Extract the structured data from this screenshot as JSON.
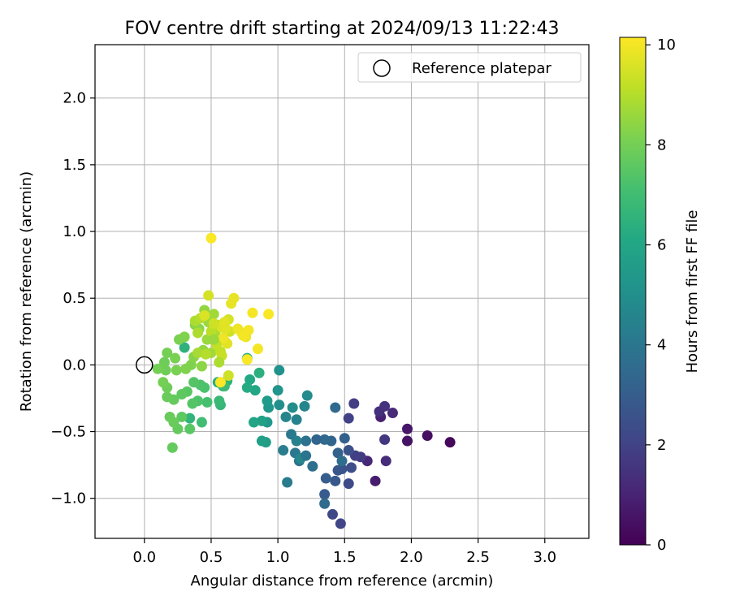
{
  "chart_data": {
    "type": "scatter",
    "title": "FOV centre drift starting at 2024/09/13 11:22:43",
    "xlabel": "Angular distance from reference (arcmin)",
    "ylabel": "Rotation from reference (arcmin)",
    "xlim": [
      -0.37,
      3.33
    ],
    "ylim": [
      -1.3,
      2.4
    ],
    "xticks": [
      0.0,
      0.5,
      1.0,
      1.5,
      2.0,
      2.5,
      3.0
    ],
    "xtick_labels": [
      "0.0",
      "0.5",
      "1.0",
      "1.5",
      "2.0",
      "2.5",
      "3.0"
    ],
    "yticks": [
      -1.0,
      -0.5,
      0.0,
      0.5,
      1.0,
      1.5,
      2.0
    ],
    "ytick_labels": [
      "−1.0",
      "−0.5",
      "0.0",
      "0.5",
      "1.0",
      "1.5",
      "2.0"
    ],
    "grid": true,
    "legend": {
      "placement": "top-right",
      "entries": [
        "Reference platepar"
      ]
    },
    "reference_point": {
      "x": 0.0,
      "y": 0.0
    },
    "colorbar": {
      "label": "Hours from first FF file",
      "colormap": "viridis",
      "range": [
        0,
        10.15
      ],
      "ticks": [
        0,
        2,
        4,
        6,
        8,
        10
      ],
      "tick_labels": [
        "0",
        "2",
        "4",
        "6",
        "8",
        "10"
      ]
    },
    "points": [
      [
        2.29,
        -0.58,
        0.2
      ],
      [
        2.12,
        -0.53,
        0.4
      ],
      [
        1.97,
        -0.57,
        0.5
      ],
      [
        1.97,
        -0.48,
        0.6
      ],
      [
        1.73,
        -0.87,
        0.8
      ],
      [
        1.77,
        -0.39,
        0.9
      ],
      [
        1.67,
        -0.72,
        1.1
      ],
      [
        1.86,
        -0.36,
        1.2
      ],
      [
        1.81,
        -0.72,
        1.3
      ],
      [
        1.76,
        -0.35,
        1.4
      ],
      [
        1.8,
        -0.31,
        1.5
      ],
      [
        1.8,
        -0.56,
        1.6
      ],
      [
        1.62,
        -0.69,
        1.7
      ],
      [
        1.57,
        -0.29,
        1.8
      ],
      [
        1.58,
        -0.68,
        1.9
      ],
      [
        1.53,
        -0.4,
        2.0
      ],
      [
        1.47,
        -1.19,
        2.1
      ],
      [
        1.41,
        -1.12,
        2.2
      ],
      [
        1.53,
        -0.89,
        2.3
      ],
      [
        1.55,
        -0.77,
        2.4
      ],
      [
        1.53,
        -0.64,
        2.5
      ],
      [
        1.48,
        -0.78,
        2.6
      ],
      [
        1.45,
        -0.79,
        2.7
      ],
      [
        1.43,
        -0.87,
        2.8
      ],
      [
        1.35,
        -0.97,
        2.9
      ],
      [
        1.36,
        -0.85,
        3.0
      ],
      [
        1.5,
        -0.55,
        3.1
      ],
      [
        1.45,
        -0.66,
        3.2
      ],
      [
        1.4,
        -0.57,
        3.3
      ],
      [
        1.35,
        -0.56,
        3.4
      ],
      [
        1.35,
        -1.04,
        3.5
      ],
      [
        1.43,
        -0.32,
        3.5
      ],
      [
        1.48,
        -0.72,
        3.6
      ],
      [
        1.26,
        -0.76,
        3.7
      ],
      [
        1.21,
        -0.57,
        3.8
      ],
      [
        1.16,
        -0.72,
        3.9
      ],
      [
        1.13,
        -0.66,
        4.0
      ],
      [
        1.1,
        -0.52,
        4.1
      ],
      [
        1.07,
        -0.88,
        4.2
      ],
      [
        1.04,
        -0.64,
        4.3
      ],
      [
        1.14,
        -0.57,
        4.4
      ],
      [
        1.14,
        -0.41,
        4.5
      ],
      [
        1.2,
        -0.31,
        4.6
      ],
      [
        1.17,
        -0.7,
        4.7
      ],
      [
        1.22,
        -0.23,
        4.8
      ],
      [
        1.21,
        -0.68,
        3.9
      ],
      [
        1.29,
        -0.56,
        3.3
      ],
      [
        1.06,
        -0.39,
        4.6
      ],
      [
        1.11,
        -0.32,
        4.9
      ],
      [
        1.01,
        -0.3,
        5.0
      ],
      [
        1.01,
        -0.04,
        5.1
      ],
      [
        1.0,
        -0.19,
        5.2
      ],
      [
        0.93,
        -0.32,
        5.3
      ],
      [
        0.92,
        -0.43,
        5.4
      ],
      [
        0.92,
        -0.27,
        5.5
      ],
      [
        0.91,
        -0.58,
        5.6
      ],
      [
        0.88,
        -0.57,
        5.7
      ],
      [
        0.88,
        -0.42,
        5.8
      ],
      [
        0.82,
        -0.43,
        5.9
      ],
      [
        0.83,
        -0.19,
        6.0
      ],
      [
        0.79,
        -0.11,
        6.1
      ],
      [
        0.77,
        -0.17,
        6.2
      ],
      [
        0.77,
        0.05,
        6.3
      ],
      [
        0.86,
        -0.06,
        6.4
      ],
      [
        0.62,
        -0.12,
        6.5
      ],
      [
        0.59,
        -0.16,
        6.6
      ],
      [
        0.57,
        -0.3,
        6.7
      ],
      [
        0.56,
        -0.27,
        6.8
      ],
      [
        0.6,
        -0.16,
        6.9
      ],
      [
        0.55,
        -0.13,
        6.4
      ],
      [
        0.3,
        0.13,
        6.5
      ],
      [
        0.34,
        -0.4,
        6.6
      ],
      [
        0.43,
        -0.43,
        7.0
      ],
      [
        0.47,
        -0.28,
        7.1
      ],
      [
        0.45,
        -0.17,
        7.2
      ],
      [
        0.42,
        -0.15,
        7.3
      ],
      [
        0.4,
        -0.27,
        7.3
      ],
      [
        0.37,
        -0.13,
        7.4
      ],
      [
        0.36,
        -0.29,
        7.4
      ],
      [
        0.34,
        -0.48,
        7.5
      ],
      [
        0.32,
        -0.2,
        7.5
      ],
      [
        0.28,
        -0.39,
        7.6
      ],
      [
        0.28,
        -0.22,
        7.6
      ],
      [
        0.25,
        -0.48,
        7.7
      ],
      [
        0.21,
        -0.62,
        7.7
      ],
      [
        0.22,
        -0.26,
        7.7
      ],
      [
        0.22,
        -0.43,
        7.8
      ],
      [
        0.19,
        -0.39,
        7.8
      ],
      [
        0.17,
        -0.24,
        7.8
      ],
      [
        0.17,
        -0.17,
        7.9
      ],
      [
        0.16,
        -0.04,
        7.9
      ],
      [
        0.15,
        0.02,
        7.9
      ],
      [
        0.14,
        -0.13,
        8.0
      ],
      [
        0.1,
        -0.03,
        8.0
      ],
      [
        0.17,
        0.09,
        8.0
      ],
      [
        0.24,
        -0.04,
        8.1
      ],
      [
        0.23,
        0.05,
        8.1
      ],
      [
        0.26,
        0.19,
        8.1
      ],
      [
        0.3,
        0.21,
        8.2
      ],
      [
        0.31,
        -0.03,
        8.2
      ],
      [
        0.35,
        0.0,
        8.2
      ],
      [
        0.37,
        0.06,
        8.3
      ],
      [
        0.38,
        0.3,
        8.3
      ],
      [
        0.41,
        0.27,
        8.4
      ],
      [
        0.43,
        -0.01,
        8.4
      ],
      [
        0.44,
        0.11,
        8.5
      ],
      [
        0.45,
        0.41,
        8.5
      ],
      [
        0.47,
        0.19,
        8.6
      ],
      [
        0.48,
        0.32,
        8.6
      ],
      [
        0.5,
        0.09,
        8.7
      ],
      [
        0.52,
        0.38,
        8.7
      ],
      [
        0.53,
        0.23,
        8.8
      ],
      [
        0.4,
        0.09,
        8.8
      ],
      [
        0.38,
        0.33,
        8.9
      ],
      [
        0.4,
        0.24,
        8.9
      ],
      [
        0.42,
        0.35,
        9.0
      ],
      [
        0.46,
        0.08,
        9.0
      ],
      [
        0.5,
        0.25,
        9.1
      ],
      [
        0.55,
        0.3,
        9.1
      ],
      [
        0.57,
        0.1,
        9.2
      ],
      [
        0.58,
        0.07,
        9.3
      ],
      [
        0.6,
        0.18,
        9.3
      ],
      [
        0.63,
        -0.08,
        9.4
      ],
      [
        0.64,
        0.25,
        9.4
      ],
      [
        0.63,
        0.34,
        9.5
      ],
      [
        0.48,
        0.52,
        9.5
      ],
      [
        0.55,
        0.17,
        9.6
      ],
      [
        0.58,
        0.28,
        9.6
      ],
      [
        0.6,
        0.32,
        9.7
      ],
      [
        0.61,
        0.27,
        9.7
      ],
      [
        0.62,
        0.16,
        9.7
      ],
      [
        0.65,
        0.46,
        9.8
      ],
      [
        0.67,
        0.5,
        9.8
      ],
      [
        0.7,
        0.27,
        9.9
      ],
      [
        0.73,
        0.24,
        9.9
      ],
      [
        0.76,
        0.21,
        9.9
      ],
      [
        0.78,
        0.26,
        10.0
      ],
      [
        0.81,
        0.39,
        10.0
      ],
      [
        0.85,
        0.12,
        10.0
      ],
      [
        0.93,
        0.38,
        10.1
      ],
      [
        0.77,
        0.04,
        10.1
      ],
      [
        0.57,
        -0.13,
        10.1
      ],
      [
        0.5,
        0.95,
        10.1
      ],
      [
        0.74,
        0.22,
        10.0
      ],
      [
        0.59,
        0.2,
        9.9
      ],
      [
        0.45,
        0.37,
        9.6
      ],
      [
        0.52,
        0.31,
        9.4
      ],
      [
        0.54,
        0.15,
        9.2
      ],
      [
        0.56,
        0.02,
        8.9
      ],
      [
        0.52,
        0.19,
        8.6
      ]
    ]
  }
}
